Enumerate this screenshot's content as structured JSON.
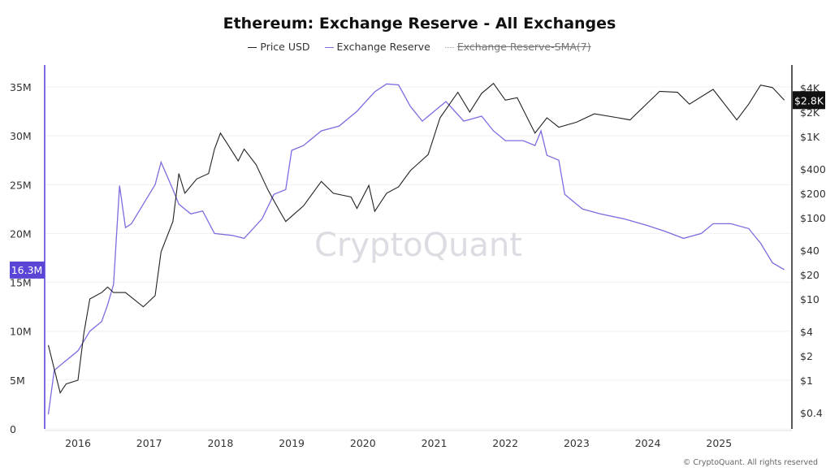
{
  "chart_data": {
    "type": "line",
    "title": "Ethereum: Exchange Reserve - All Exchanges",
    "watermark": "CryptoQuant",
    "footer": "© CryptoQuant. All rights reserved",
    "legend": [
      {
        "name": "Price USD",
        "color": "#222222",
        "enabled": true
      },
      {
        "name": "Exchange Reserve",
        "color": "#7b6ce0",
        "enabled": true
      },
      {
        "name": "Exchange Reserve-SMA(7)",
        "color": "#aaaaaa",
        "enabled": false
      }
    ],
    "legend_position": "top-center",
    "grid": true,
    "x_ticks": [
      "2016",
      "2017",
      "2018",
      "2019",
      "2020",
      "2021",
      "2022",
      "2023",
      "2024",
      "2025"
    ],
    "y_left": {
      "ticks": [
        "0",
        "5M",
        "10M",
        "15M",
        "20M",
        "25M",
        "30M",
        "35M"
      ],
      "values": [
        0,
        5,
        10,
        15,
        20,
        25,
        30,
        35
      ],
      "unit": "M",
      "range": [
        0,
        35
      ]
    },
    "y_right": {
      "scale": "log",
      "ticks": [
        "$0.4",
        "$1",
        "$2",
        "$4",
        "$10",
        "$20",
        "$40",
        "$100",
        "$200",
        "$400",
        "$1K",
        "$2K",
        "$4K"
      ],
      "values": [
        0.4,
        1,
        2,
        4,
        10,
        20,
        40,
        100,
        200,
        400,
        1000,
        2000,
        4000
      ]
    },
    "current_labels": {
      "reserve": "16.3M",
      "price": "$2.8K"
    },
    "series": [
      {
        "name": "Exchange Reserve",
        "axis": "left",
        "unit": "M ETH",
        "x": [
          "2015-08",
          "2015-09",
          "2015-11",
          "2016-01",
          "2016-03",
          "2016-05",
          "2016-06",
          "2016-07",
          "2016-08",
          "2016-09",
          "2016-10",
          "2016-12",
          "2017-02",
          "2017-03",
          "2017-05",
          "2017-06",
          "2017-08",
          "2017-10",
          "2017-12",
          "2018-03",
          "2018-05",
          "2018-08",
          "2018-10",
          "2018-12",
          "2019-01",
          "2019-03",
          "2019-06",
          "2019-09",
          "2019-12",
          "2020-03",
          "2020-05",
          "2020-07",
          "2020-09",
          "2020-11",
          "2021-01",
          "2021-03",
          "2021-06",
          "2021-09",
          "2021-11",
          "2022-01",
          "2022-04",
          "2022-06",
          "2022-07",
          "2022-08",
          "2022-10",
          "2022-11",
          "2023-02",
          "2023-05",
          "2023-09",
          "2024-01",
          "2024-04",
          "2024-07",
          "2024-10",
          "2024-12",
          "2025-03",
          "2025-06",
          "2025-08",
          "2025-10",
          "2025-12"
        ],
        "values": [
          1.5,
          6,
          7,
          8,
          10,
          11,
          12.7,
          14.8,
          24.9,
          20.6,
          21,
          23,
          25,
          27.3,
          24.5,
          23,
          22,
          22.3,
          20,
          19.8,
          19.5,
          21.5,
          24,
          24.5,
          28.5,
          29,
          30.5,
          31,
          32.5,
          34.5,
          35.3,
          35.2,
          33,
          31.5,
          32.5,
          33.5,
          31.5,
          32,
          30.5,
          29.5,
          29.5,
          29,
          30.5,
          28,
          27.5,
          24,
          22.5,
          22,
          21.5,
          20.8,
          20.2,
          19.5,
          20,
          21,
          21,
          20.5,
          19,
          17,
          16.3
        ]
      },
      {
        "name": "Price USD",
        "axis": "right",
        "x": [
          "2015-08",
          "2015-10",
          "2015-11",
          "2016-01",
          "2016-02",
          "2016-03",
          "2016-05",
          "2016-06",
          "2016-07",
          "2016-09",
          "2016-12",
          "2017-02",
          "2017-03",
          "2017-05",
          "2017-06",
          "2017-07",
          "2017-09",
          "2017-11",
          "2017-12",
          "2018-01",
          "2018-02",
          "2018-04",
          "2018-05",
          "2018-07",
          "2018-09",
          "2018-11",
          "2018-12",
          "2019-03",
          "2019-06",
          "2019-08",
          "2019-11",
          "2019-12",
          "2020-02",
          "2020-03",
          "2020-05",
          "2020-07",
          "2020-09",
          "2020-12",
          "2021-02",
          "2021-05",
          "2021-07",
          "2021-09",
          "2021-11",
          "2022-01",
          "2022-03",
          "2022-06",
          "2022-08",
          "2022-10",
          "2023-01",
          "2023-04",
          "2023-08",
          "2023-10",
          "2024-03",
          "2024-06",
          "2024-08",
          "2024-12",
          "2025-04",
          "2025-06",
          "2025-08",
          "2025-10",
          "2025-12"
        ],
        "values": [
          2.7,
          0.7,
          0.9,
          1,
          3.8,
          10,
          12,
          14,
          12,
          12,
          8,
          11,
          38,
          90,
          350,
          200,
          300,
          350,
          700,
          1100,
          850,
          500,
          700,
          450,
          220,
          120,
          90,
          140,
          280,
          200,
          180,
          130,
          250,
          120,
          200,
          240,
          380,
          600,
          1700,
          3500,
          2000,
          3400,
          4500,
          2800,
          3000,
          1100,
          1700,
          1300,
          1500,
          1900,
          1700,
          1600,
          3600,
          3500,
          2500,
          3800,
          1600,
          2500,
          4300,
          4000,
          2800
        ]
      }
    ]
  }
}
